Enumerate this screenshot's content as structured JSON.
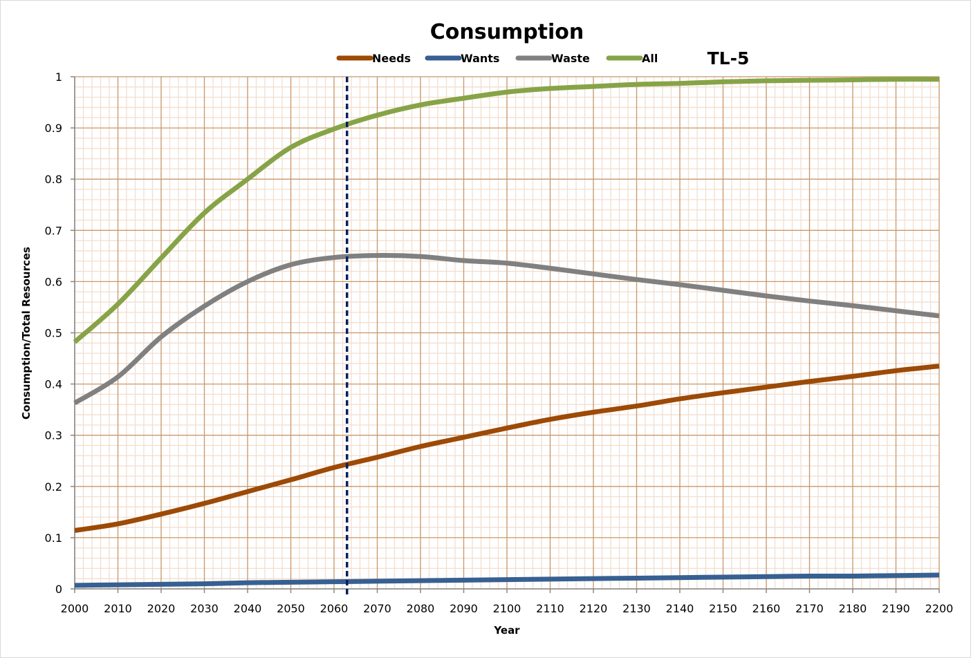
{
  "chart_data": {
    "type": "line",
    "title": "Consumption",
    "annotation": "TL-5",
    "xlabel": "Year",
    "ylabel": "Consumption/Total Resources",
    "xlim": [
      2000,
      2200
    ],
    "ylim": [
      0,
      1
    ],
    "x_ticks": [
      2000,
      2010,
      2020,
      2030,
      2040,
      2050,
      2060,
      2070,
      2080,
      2090,
      2100,
      2110,
      2120,
      2130,
      2140,
      2150,
      2160,
      2170,
      2180,
      2190,
      2200
    ],
    "x_tick_labels": [
      "2000",
      "2010",
      "2020",
      "2030",
      "2040",
      "2050",
      "2060",
      "2070",
      "2080",
      "2090",
      "2100",
      "2110",
      "2120",
      "2130",
      "2140",
      "2150",
      "2160",
      "2170",
      "2180",
      "2190",
      "2200"
    ],
    "y_ticks": [
      0,
      0.1,
      0.2,
      0.3,
      0.4,
      0.5,
      0.6,
      0.7,
      0.8,
      0.9,
      1
    ],
    "y_tick_labels": [
      "0",
      "0.1",
      "0.2",
      "0.3",
      "0.4",
      "0.5",
      "0.6",
      "0.7",
      "0.8",
      "0.9",
      "1"
    ],
    "x_minor_step": 2,
    "y_minor_step": 0.02,
    "grid": true,
    "legend_position": "top-center",
    "vertical_marker": {
      "x": 2063,
      "style": "dashed",
      "color": "#002060"
    },
    "x": [
      2000,
      2010,
      2020,
      2030,
      2040,
      2050,
      2060,
      2070,
      2080,
      2090,
      2100,
      2110,
      2120,
      2130,
      2140,
      2150,
      2160,
      2170,
      2180,
      2190,
      2200
    ],
    "series": [
      {
        "name": "Needs",
        "color": "#9C4A06",
        "values": [
          0.114,
          0.127,
          0.146,
          0.167,
          0.19,
          0.213,
          0.237,
          0.257,
          0.278,
          0.296,
          0.314,
          0.331,
          0.345,
          0.357,
          0.371,
          0.383,
          0.394,
          0.405,
          0.415,
          0.426,
          0.435
        ]
      },
      {
        "name": "Wants",
        "color": "#376092",
        "values": [
          0.007,
          0.008,
          0.009,
          0.01,
          0.012,
          0.013,
          0.014,
          0.015,
          0.016,
          0.017,
          0.018,
          0.019,
          0.02,
          0.021,
          0.022,
          0.023,
          0.024,
          0.025,
          0.025,
          0.026,
          0.027
        ]
      },
      {
        "name": "Waste",
        "color": "#808080",
        "values": [
          0.363,
          0.414,
          0.492,
          0.552,
          0.6,
          0.633,
          0.647,
          0.651,
          0.649,
          0.641,
          0.636,
          0.626,
          0.615,
          0.604,
          0.594,
          0.583,
          0.572,
          0.562,
          0.553,
          0.543,
          0.533
        ]
      },
      {
        "name": "All",
        "color": "#86A447",
        "values": [
          0.482,
          0.556,
          0.646,
          0.734,
          0.8,
          0.862,
          0.898,
          0.925,
          0.945,
          0.958,
          0.97,
          0.977,
          0.981,
          0.985,
          0.987,
          0.99,
          0.992,
          0.993,
          0.994,
          0.995,
          0.995
        ]
      }
    ],
    "colors": {
      "major_grid": "#C9996E",
      "minor_grid": "#F2DED0",
      "axis": "#868686"
    }
  }
}
